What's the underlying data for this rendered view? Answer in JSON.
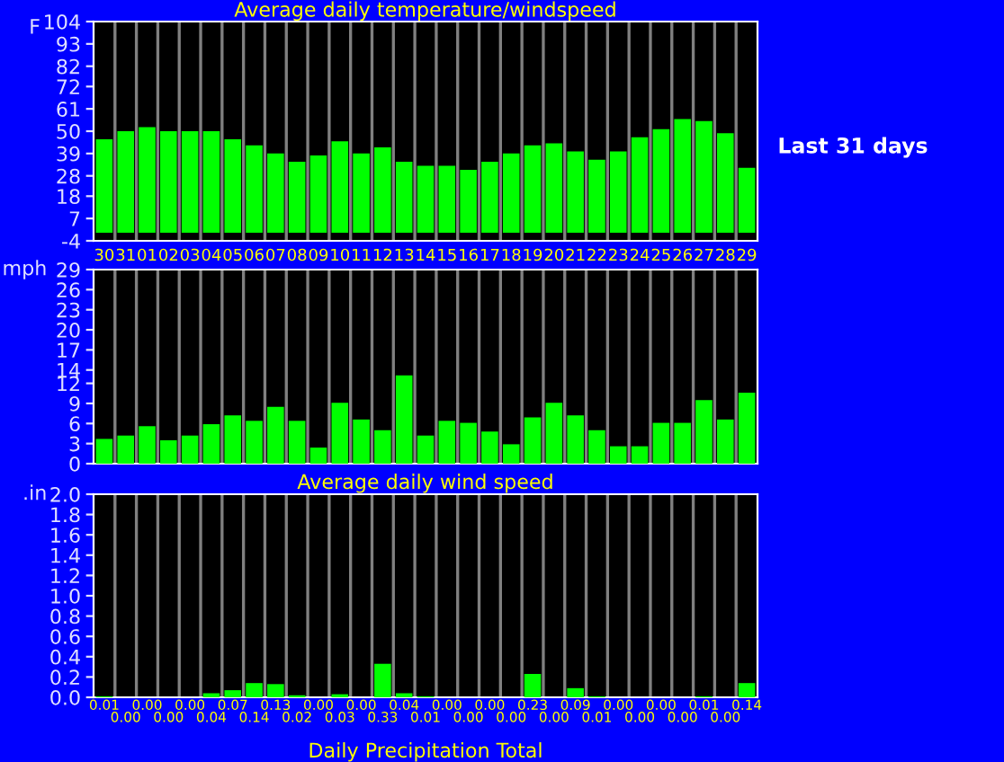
{
  "chart_data": [
    {
      "type": "bar",
      "title": "Average daily temperature/windspeed",
      "ylabel": "F",
      "annotations": [
        "Last 31 days"
      ],
      "categories": [
        "30",
        "31",
        "01",
        "02",
        "03",
        "04",
        "05",
        "06",
        "07",
        "08",
        "09",
        "10",
        "11",
        "12",
        "13",
        "14",
        "15",
        "16",
        "17",
        "18",
        "19",
        "20",
        "21",
        "22",
        "23",
        "24",
        "25",
        "26",
        "27",
        "28",
        "29"
      ],
      "values": [
        46,
        50,
        52,
        50,
        50,
        50,
        46,
        43,
        39,
        35,
        38,
        45,
        39,
        42,
        35,
        33,
        33,
        31,
        35,
        39,
        43,
        44,
        40,
        36,
        40,
        47,
        51,
        56,
        55,
        49,
        32
      ],
      "color": "#00ff00",
      "ylim": [
        -4,
        104
      ],
      "yticks": [
        -4,
        7,
        18,
        28,
        39,
        50,
        61,
        72,
        82,
        93,
        104
      ],
      "grid": "x"
    },
    {
      "type": "bar",
      "xlabel": "Average daily wind speed",
      "ylabel": "mph",
      "tick_labels": "y",
      "categories": [
        "30",
        "31",
        "01",
        "02",
        "03",
        "04",
        "05",
        "06",
        "07",
        "08",
        "09",
        "10",
        "11",
        "12",
        "13",
        "14",
        "15",
        "16",
        "17",
        "18",
        "19",
        "20",
        "21",
        "22",
        "23",
        "24",
        "25",
        "26",
        "27",
        "28",
        "29"
      ],
      "values": [
        3.7,
        4.2,
        5.6,
        3.5,
        4.2,
        5.9,
        7.2,
        6.4,
        8.5,
        6.4,
        2.4,
        9.1,
        6.6,
        5.0,
        13.2,
        4.2,
        6.4,
        6.1,
        4.8,
        2.9,
        6.9,
        9.1,
        7.2,
        5.0,
        2.6,
        2.6,
        6.1,
        6.1,
        9.5,
        6.6,
        10.6
      ],
      "color": "#00ff00",
      "ylim": [
        0,
        29
      ],
      "yticks": [
        0,
        3,
        6,
        9,
        12,
        14,
        17,
        20,
        23,
        26,
        29
      ],
      "grid": "x"
    },
    {
      "type": "bar",
      "xlabel": "Daily Precipitation Total",
      "ylabel": ".in",
      "tick_labels": "y",
      "categories": [
        "30",
        "31",
        "01",
        "02",
        "03",
        "04",
        "05",
        "06",
        "07",
        "08",
        "09",
        "10",
        "11",
        "12",
        "13",
        "14",
        "15",
        "16",
        "17",
        "18",
        "19",
        "20",
        "21",
        "22",
        "23",
        "24",
        "25",
        "26",
        "27",
        "28",
        "29"
      ],
      "values": [
        0.01,
        0,
        0,
        0,
        0,
        0.04,
        0.07,
        0.14,
        0.13,
        0.02,
        0,
        0.03,
        0,
        0.33,
        0.04,
        0.01,
        0,
        0,
        0,
        0,
        0.23,
        0,
        0.09,
        0.01,
        0,
        0,
        0,
        0,
        0.01,
        0,
        0.14
      ],
      "value_labels": [
        "0.01",
        "0.00",
        "0.00",
        "0.00",
        "0.00",
        "0.04",
        "0.07",
        "0.14",
        "0.13",
        "0.02",
        "0.00",
        "0.03",
        "0.00",
        "0.33",
        "0.04",
        "0.01",
        "0.00",
        "0.00",
        "0.00",
        "0.00",
        "0.23",
        "0.00",
        "0.09",
        "0.01",
        "0.00",
        "0.00",
        "0.00",
        "0.00",
        "0.01",
        "0.00",
        "0.14"
      ],
      "color": "#00ff00",
      "ylim": [
        0,
        2.0
      ],
      "yticks": [
        {
          "value": 0,
          "label": "0.0"
        },
        {
          "value": 0.2,
          "label": "0.2"
        },
        {
          "value": 0.4,
          "label": "0.4"
        },
        {
          "value": 0.6,
          "label": "0.6"
        },
        {
          "value": 0.8,
          "label": "0.8"
        },
        {
          "value": 1.0,
          "label": "1.0"
        },
        {
          "value": 1.2,
          "label": "1.2"
        },
        {
          "value": 1.4,
          "label": "1.4"
        },
        {
          "value": 1.6,
          "label": "1.6"
        },
        {
          "value": 1.8,
          "label": "1.8"
        },
        {
          "value": 2.0,
          "label": "2.0"
        }
      ],
      "grid": "x"
    }
  ]
}
